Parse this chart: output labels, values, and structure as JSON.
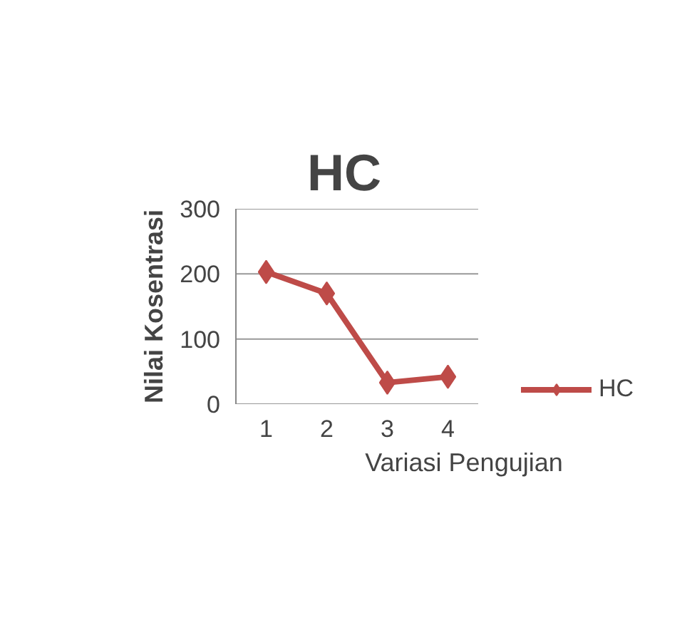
{
  "chart_data": {
    "type": "line",
    "title": "HC",
    "xlabel": "Variasi Pengujian",
    "ylabel": "Nilai Kosentrasi",
    "categories": [
      "1",
      "2",
      "3",
      "4"
    ],
    "series": [
      {
        "name": "HC",
        "color": "#be4b48",
        "values": [
          203,
          170,
          33,
          42
        ]
      }
    ],
    "ylim": [
      0,
      300
    ],
    "yticks": [
      0,
      100,
      200,
      300
    ],
    "grid": "y",
    "legend": "right",
    "marker": "diamond",
    "line_style": "solid"
  }
}
